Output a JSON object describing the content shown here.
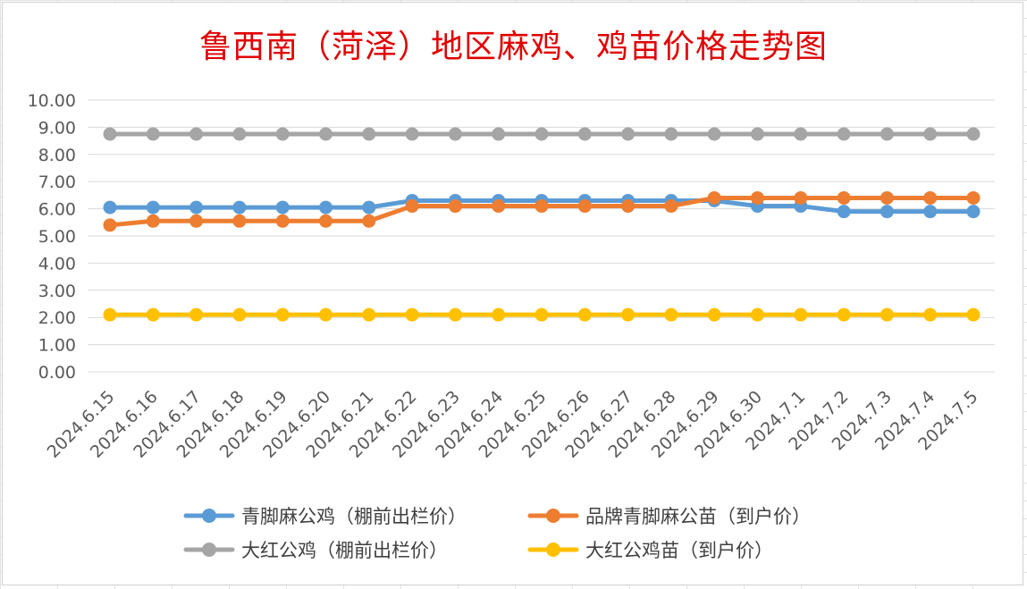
{
  "chart_data": {
    "type": "line",
    "title": "鲁西南（菏泽）地区麻鸡、鸡苗价格走势图",
    "xlabel": "",
    "ylabel": "",
    "ylim": [
      0,
      10
    ],
    "yticks": [
      "0.00",
      "1.00",
      "2.00",
      "3.00",
      "4.00",
      "5.00",
      "6.00",
      "7.00",
      "8.00",
      "9.00",
      "10.00"
    ],
    "grid": true,
    "legend_position": "bottom",
    "x": [
      "2024.6.15",
      "2024.6.16",
      "2024.6.17",
      "2024.6.18",
      "2024.6.19",
      "2024.6.20",
      "2024.6.21",
      "2024.6.22",
      "2024.6.23",
      "2024.6.24",
      "2024.6.25",
      "2024.6.26",
      "2024.6.27",
      "2024.6.28",
      "2024.6.29",
      "2024.6.30",
      "2024.7.1",
      "2024.7.2",
      "2024.7.3",
      "2024.7.4",
      "2024.7.5"
    ],
    "series": [
      {
        "name": "青脚麻公鸡（棚前出栏价）",
        "color": "#5b9bd5",
        "values": [
          6.05,
          6.05,
          6.05,
          6.05,
          6.05,
          6.05,
          6.05,
          6.3,
          6.3,
          6.3,
          6.3,
          6.3,
          6.3,
          6.3,
          6.3,
          6.1,
          6.1,
          5.9,
          5.9,
          5.9,
          5.9
        ]
      },
      {
        "name": "品牌青脚麻公苗（到户价）",
        "color": "#ed7d31",
        "values": [
          5.4,
          5.55,
          5.55,
          5.55,
          5.55,
          5.55,
          5.55,
          6.1,
          6.1,
          6.1,
          6.1,
          6.1,
          6.1,
          6.1,
          6.4,
          6.4,
          6.4,
          6.4,
          6.4,
          6.4,
          6.4
        ]
      },
      {
        "name": "大红公鸡（棚前出栏价）",
        "color": "#a5a5a5",
        "values": [
          8.75,
          8.75,
          8.75,
          8.75,
          8.75,
          8.75,
          8.75,
          8.75,
          8.75,
          8.75,
          8.75,
          8.75,
          8.75,
          8.75,
          8.75,
          8.75,
          8.75,
          8.75,
          8.75,
          8.75,
          8.75
        ]
      },
      {
        "name": "大红公鸡苗（到户价）",
        "color": "#ffc000",
        "values": [
          2.1,
          2.1,
          2.1,
          2.1,
          2.1,
          2.1,
          2.1,
          2.1,
          2.1,
          2.1,
          2.1,
          2.1,
          2.1,
          2.1,
          2.1,
          2.1,
          2.1,
          2.1,
          2.1,
          2.1,
          2.1
        ]
      }
    ]
  }
}
